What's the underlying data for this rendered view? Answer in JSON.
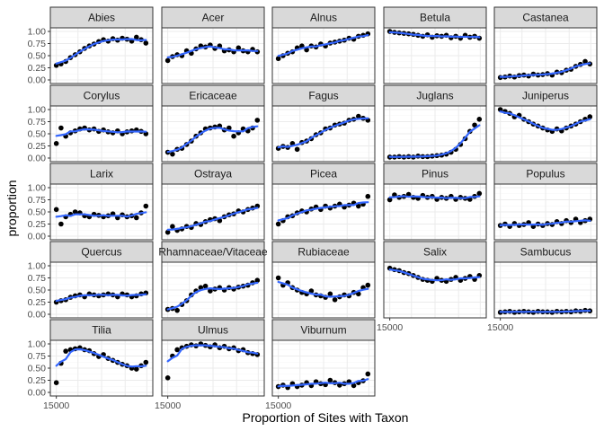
{
  "chart_data": {
    "type": "scatter",
    "title": "",
    "xlabel": "Proportion of Sites with Taxon",
    "ylabel": "proportion",
    "ylim": [
      0,
      1
    ],
    "y_ticks": [
      "0.00",
      "0.25",
      "0.50",
      "0.75",
      "1.00"
    ],
    "x_tick_label": "15000",
    "x_range": [
      0,
      1
    ],
    "grid": true,
    "legend": "none",
    "colors": {
      "points": "#000000",
      "smooth": "#3366FF",
      "strip_fill": "#D9D9D9",
      "strip_border": "#333333",
      "panel_border": "#333333",
      "grid": "#EBEBEB"
    },
    "facets": [
      {
        "name": "Abies",
        "x": [
          0.02,
          0.07,
          0.12,
          0.17,
          0.22,
          0.27,
          0.32,
          0.37,
          0.42,
          0.47,
          0.52,
          0.57,
          0.62,
          0.67,
          0.72,
          0.77,
          0.82,
          0.87,
          0.92,
          0.97
        ],
        "y": [
          0.3,
          0.33,
          0.38,
          0.46,
          0.52,
          0.58,
          0.65,
          0.7,
          0.74,
          0.79,
          0.83,
          0.8,
          0.85,
          0.82,
          0.86,
          0.84,
          0.8,
          0.88,
          0.83,
          0.76
        ]
      },
      {
        "name": "Acer",
        "x": [
          0.02,
          0.07,
          0.12,
          0.17,
          0.22,
          0.27,
          0.32,
          0.37,
          0.42,
          0.47,
          0.52,
          0.57,
          0.62,
          0.67,
          0.72,
          0.77,
          0.82,
          0.87,
          0.92,
          0.97
        ],
        "y": [
          0.4,
          0.48,
          0.52,
          0.5,
          0.6,
          0.55,
          0.64,
          0.7,
          0.68,
          0.72,
          0.65,
          0.7,
          0.6,
          0.62,
          0.58,
          0.66,
          0.6,
          0.58,
          0.63,
          0.58
        ]
      },
      {
        "name": "Alnus",
        "x": [
          0.02,
          0.07,
          0.12,
          0.17,
          0.22,
          0.27,
          0.32,
          0.37,
          0.42,
          0.47,
          0.52,
          0.57,
          0.62,
          0.67,
          0.72,
          0.77,
          0.82,
          0.87,
          0.92,
          0.97
        ],
        "y": [
          0.44,
          0.5,
          0.55,
          0.58,
          0.66,
          0.7,
          0.62,
          0.7,
          0.68,
          0.74,
          0.7,
          0.76,
          0.78,
          0.8,
          0.82,
          0.86,
          0.84,
          0.9,
          0.92,
          0.95
        ]
      },
      {
        "name": "Betula",
        "x": [
          0.02,
          0.07,
          0.12,
          0.17,
          0.22,
          0.27,
          0.32,
          0.37,
          0.42,
          0.47,
          0.52,
          0.57,
          0.62,
          0.67,
          0.72,
          0.77,
          0.82,
          0.87,
          0.92,
          0.97
        ],
        "y": [
          1.0,
          0.98,
          0.97,
          0.96,
          0.95,
          0.94,
          0.92,
          0.9,
          0.93,
          0.88,
          0.91,
          0.9,
          0.92,
          0.87,
          0.9,
          0.86,
          0.92,
          0.88,
          0.9,
          0.86
        ]
      },
      {
        "name": "Castanea",
        "x": [
          0.02,
          0.07,
          0.12,
          0.17,
          0.22,
          0.27,
          0.32,
          0.37,
          0.42,
          0.47,
          0.52,
          0.57,
          0.62,
          0.67,
          0.72,
          0.77,
          0.82,
          0.87,
          0.92,
          0.97
        ],
        "y": [
          0.05,
          0.06,
          0.08,
          0.06,
          0.09,
          0.1,
          0.08,
          0.12,
          0.1,
          0.11,
          0.13,
          0.1,
          0.16,
          0.15,
          0.2,
          0.22,
          0.28,
          0.32,
          0.38,
          0.33
        ]
      },
      {
        "name": "Corylus",
        "x": [
          0.02,
          0.07,
          0.12,
          0.17,
          0.22,
          0.27,
          0.32,
          0.37,
          0.42,
          0.47,
          0.52,
          0.57,
          0.62,
          0.67,
          0.72,
          0.77,
          0.82,
          0.87,
          0.92,
          0.97
        ],
        "y": [
          0.3,
          0.62,
          0.45,
          0.52,
          0.56,
          0.6,
          0.62,
          0.58,
          0.6,
          0.55,
          0.58,
          0.54,
          0.52,
          0.56,
          0.5,
          0.54,
          0.56,
          0.58,
          0.55,
          0.5
        ]
      },
      {
        "name": "Ericaceae",
        "x": [
          0.02,
          0.07,
          0.12,
          0.17,
          0.22,
          0.27,
          0.32,
          0.37,
          0.42,
          0.47,
          0.52,
          0.57,
          0.62,
          0.67,
          0.72,
          0.77,
          0.82,
          0.87,
          0.92,
          0.97
        ],
        "y": [
          0.12,
          0.08,
          0.18,
          0.2,
          0.28,
          0.35,
          0.45,
          0.52,
          0.6,
          0.62,
          0.64,
          0.66,
          0.58,
          0.62,
          0.45,
          0.52,
          0.6,
          0.56,
          0.62,
          0.78
        ]
      },
      {
        "name": "Fagus",
        "x": [
          0.02,
          0.07,
          0.12,
          0.17,
          0.22,
          0.27,
          0.32,
          0.37,
          0.42,
          0.47,
          0.52,
          0.57,
          0.62,
          0.67,
          0.72,
          0.77,
          0.82,
          0.87,
          0.92,
          0.97
        ],
        "y": [
          0.2,
          0.24,
          0.22,
          0.3,
          0.18,
          0.32,
          0.35,
          0.4,
          0.48,
          0.52,
          0.6,
          0.62,
          0.68,
          0.7,
          0.72,
          0.78,
          0.8,
          0.86,
          0.82,
          0.78
        ]
      },
      {
        "name": "Juglans",
        "x": [
          0.02,
          0.07,
          0.12,
          0.17,
          0.22,
          0.27,
          0.32,
          0.37,
          0.42,
          0.47,
          0.52,
          0.57,
          0.62,
          0.67,
          0.72,
          0.77,
          0.82,
          0.87,
          0.92,
          0.97
        ],
        "y": [
          0.02,
          0.02,
          0.03,
          0.02,
          0.03,
          0.02,
          0.04,
          0.03,
          0.03,
          0.04,
          0.05,
          0.06,
          0.08,
          0.12,
          0.18,
          0.28,
          0.4,
          0.55,
          0.68,
          0.8
        ]
      },
      {
        "name": "Juniperus",
        "x": [
          0.02,
          0.07,
          0.12,
          0.17,
          0.22,
          0.27,
          0.32,
          0.37,
          0.42,
          0.47,
          0.52,
          0.57,
          0.62,
          0.67,
          0.72,
          0.77,
          0.82,
          0.87,
          0.92,
          0.97
        ],
        "y": [
          1.0,
          0.96,
          0.92,
          0.85,
          0.88,
          0.8,
          0.75,
          0.7,
          0.66,
          0.62,
          0.58,
          0.55,
          0.6,
          0.56,
          0.62,
          0.66,
          0.7,
          0.75,
          0.8,
          0.85
        ]
      },
      {
        "name": "Larix",
        "x": [
          0.02,
          0.07,
          0.12,
          0.17,
          0.22,
          0.27,
          0.32,
          0.37,
          0.42,
          0.47,
          0.52,
          0.57,
          0.62,
          0.67,
          0.72,
          0.77,
          0.82,
          0.87,
          0.92,
          0.97
        ],
        "y": [
          0.55,
          0.25,
          0.4,
          0.45,
          0.5,
          0.48,
          0.42,
          0.4,
          0.45,
          0.43,
          0.4,
          0.42,
          0.46,
          0.38,
          0.44,
          0.4,
          0.42,
          0.38,
          0.48,
          0.62
        ]
      },
      {
        "name": "Ostraya",
        "x": [
          0.02,
          0.07,
          0.12,
          0.17,
          0.22,
          0.27,
          0.32,
          0.37,
          0.42,
          0.47,
          0.52,
          0.57,
          0.62,
          0.67,
          0.72,
          0.77,
          0.82,
          0.87,
          0.92,
          0.97
        ],
        "y": [
          0.08,
          0.2,
          0.12,
          0.15,
          0.2,
          0.18,
          0.26,
          0.24,
          0.3,
          0.34,
          0.36,
          0.32,
          0.4,
          0.44,
          0.46,
          0.52,
          0.5,
          0.55,
          0.58,
          0.62
        ]
      },
      {
        "name": "Picea",
        "x": [
          0.02,
          0.07,
          0.12,
          0.17,
          0.22,
          0.27,
          0.32,
          0.37,
          0.42,
          0.47,
          0.52,
          0.57,
          0.62,
          0.67,
          0.72,
          0.77,
          0.82,
          0.87,
          0.92,
          0.97
        ],
        "y": [
          0.25,
          0.32,
          0.4,
          0.42,
          0.48,
          0.52,
          0.5,
          0.56,
          0.6,
          0.55,
          0.62,
          0.58,
          0.62,
          0.66,
          0.6,
          0.64,
          0.68,
          0.62,
          0.66,
          0.82
        ]
      },
      {
        "name": "Pinus",
        "x": [
          0.02,
          0.07,
          0.12,
          0.17,
          0.22,
          0.27,
          0.32,
          0.37,
          0.42,
          0.47,
          0.52,
          0.57,
          0.62,
          0.67,
          0.72,
          0.77,
          0.82,
          0.87,
          0.92,
          0.97
        ],
        "y": [
          0.75,
          0.85,
          0.8,
          0.82,
          0.86,
          0.8,
          0.78,
          0.84,
          0.8,
          0.82,
          0.76,
          0.8,
          0.78,
          0.82,
          0.76,
          0.8,
          0.78,
          0.76,
          0.82,
          0.88
        ]
      },
      {
        "name": "Populus",
        "x": [
          0.02,
          0.07,
          0.12,
          0.17,
          0.22,
          0.27,
          0.32,
          0.37,
          0.42,
          0.47,
          0.52,
          0.57,
          0.62,
          0.67,
          0.72,
          0.77,
          0.82,
          0.87,
          0.92,
          0.97
        ],
        "y": [
          0.22,
          0.25,
          0.2,
          0.26,
          0.22,
          0.24,
          0.28,
          0.2,
          0.25,
          0.22,
          0.26,
          0.24,
          0.3,
          0.26,
          0.32,
          0.28,
          0.35,
          0.28,
          0.32,
          0.35
        ]
      },
      {
        "name": "Quercus",
        "x": [
          0.02,
          0.07,
          0.12,
          0.17,
          0.22,
          0.27,
          0.32,
          0.37,
          0.42,
          0.47,
          0.52,
          0.57,
          0.62,
          0.67,
          0.72,
          0.77,
          0.82,
          0.87,
          0.92,
          0.97
        ],
        "y": [
          0.25,
          0.28,
          0.3,
          0.35,
          0.38,
          0.4,
          0.36,
          0.42,
          0.4,
          0.38,
          0.4,
          0.42,
          0.4,
          0.36,
          0.42,
          0.4,
          0.36,
          0.38,
          0.42,
          0.44
        ]
      },
      {
        "name": "Rhamnaceae/Vitaceae",
        "x": [
          0.02,
          0.07,
          0.12,
          0.17,
          0.22,
          0.27,
          0.32,
          0.37,
          0.42,
          0.47,
          0.52,
          0.57,
          0.62,
          0.67,
          0.72,
          0.77,
          0.82,
          0.87,
          0.92,
          0.97
        ],
        "y": [
          0.1,
          0.12,
          0.08,
          0.2,
          0.28,
          0.4,
          0.48,
          0.55,
          0.58,
          0.48,
          0.52,
          0.55,
          0.5,
          0.55,
          0.52,
          0.56,
          0.58,
          0.6,
          0.65,
          0.7
        ]
      },
      {
        "name": "Rubiaceae",
        "x": [
          0.02,
          0.07,
          0.12,
          0.17,
          0.22,
          0.27,
          0.32,
          0.37,
          0.42,
          0.47,
          0.52,
          0.57,
          0.62,
          0.67,
          0.72,
          0.77,
          0.82,
          0.87,
          0.92,
          0.97
        ],
        "y": [
          0.75,
          0.6,
          0.65,
          0.55,
          0.5,
          0.45,
          0.42,
          0.48,
          0.4,
          0.38,
          0.35,
          0.42,
          0.3,
          0.36,
          0.4,
          0.38,
          0.45,
          0.42,
          0.55,
          0.6
        ]
      },
      {
        "name": "Salix",
        "x": [
          0.02,
          0.07,
          0.12,
          0.17,
          0.22,
          0.27,
          0.32,
          0.37,
          0.42,
          0.47,
          0.52,
          0.57,
          0.62,
          0.67,
          0.72,
          0.77,
          0.82,
          0.87,
          0.92,
          0.97
        ],
        "y": [
          0.95,
          0.92,
          0.9,
          0.86,
          0.84,
          0.8,
          0.76,
          0.72,
          0.7,
          0.68,
          0.74,
          0.7,
          0.68,
          0.72,
          0.76,
          0.7,
          0.74,
          0.78,
          0.72,
          0.8
        ]
      },
      {
        "name": "Sambucus",
        "x": [
          0.02,
          0.07,
          0.12,
          0.17,
          0.22,
          0.27,
          0.32,
          0.37,
          0.42,
          0.47,
          0.52,
          0.57,
          0.62,
          0.67,
          0.72,
          0.77,
          0.82,
          0.87,
          0.92,
          0.97
        ],
        "y": [
          0.04,
          0.05,
          0.06,
          0.04,
          0.05,
          0.06,
          0.05,
          0.04,
          0.06,
          0.05,
          0.05,
          0.04,
          0.06,
          0.05,
          0.06,
          0.05,
          0.07,
          0.06,
          0.08,
          0.07
        ]
      },
      {
        "name": "Tilia",
        "x": [
          0.02,
          0.07,
          0.12,
          0.17,
          0.22,
          0.27,
          0.32,
          0.37,
          0.42,
          0.47,
          0.52,
          0.57,
          0.62,
          0.67,
          0.72,
          0.77,
          0.82,
          0.87,
          0.92,
          0.97
        ],
        "y": [
          0.2,
          0.6,
          0.85,
          0.88,
          0.9,
          0.92,
          0.88,
          0.86,
          0.8,
          0.74,
          0.78,
          0.7,
          0.66,
          0.62,
          0.58,
          0.55,
          0.5,
          0.48,
          0.55,
          0.62
        ]
      },
      {
        "name": "Ulmus",
        "x": [
          0.02,
          0.07,
          0.12,
          0.17,
          0.22,
          0.27,
          0.32,
          0.37,
          0.42,
          0.47,
          0.52,
          0.57,
          0.62,
          0.67,
          0.72,
          0.77,
          0.82,
          0.87,
          0.92,
          0.97
        ],
        "y": [
          0.3,
          0.75,
          0.88,
          0.92,
          0.95,
          0.98,
          0.96,
          1.0,
          0.97,
          0.94,
          0.98,
          0.92,
          0.95,
          0.9,
          0.92,
          0.86,
          0.88,
          0.82,
          0.8,
          0.78
        ]
      },
      {
        "name": "Viburnum",
        "x": [
          0.02,
          0.07,
          0.12,
          0.17,
          0.22,
          0.27,
          0.32,
          0.37,
          0.42,
          0.47,
          0.52,
          0.57,
          0.62,
          0.67,
          0.72,
          0.77,
          0.82,
          0.87,
          0.92,
          0.97
        ],
        "y": [
          0.12,
          0.15,
          0.1,
          0.18,
          0.12,
          0.15,
          0.2,
          0.14,
          0.22,
          0.18,
          0.16,
          0.25,
          0.2,
          0.15,
          0.18,
          0.22,
          0.14,
          0.2,
          0.24,
          0.38
        ]
      }
    ]
  }
}
